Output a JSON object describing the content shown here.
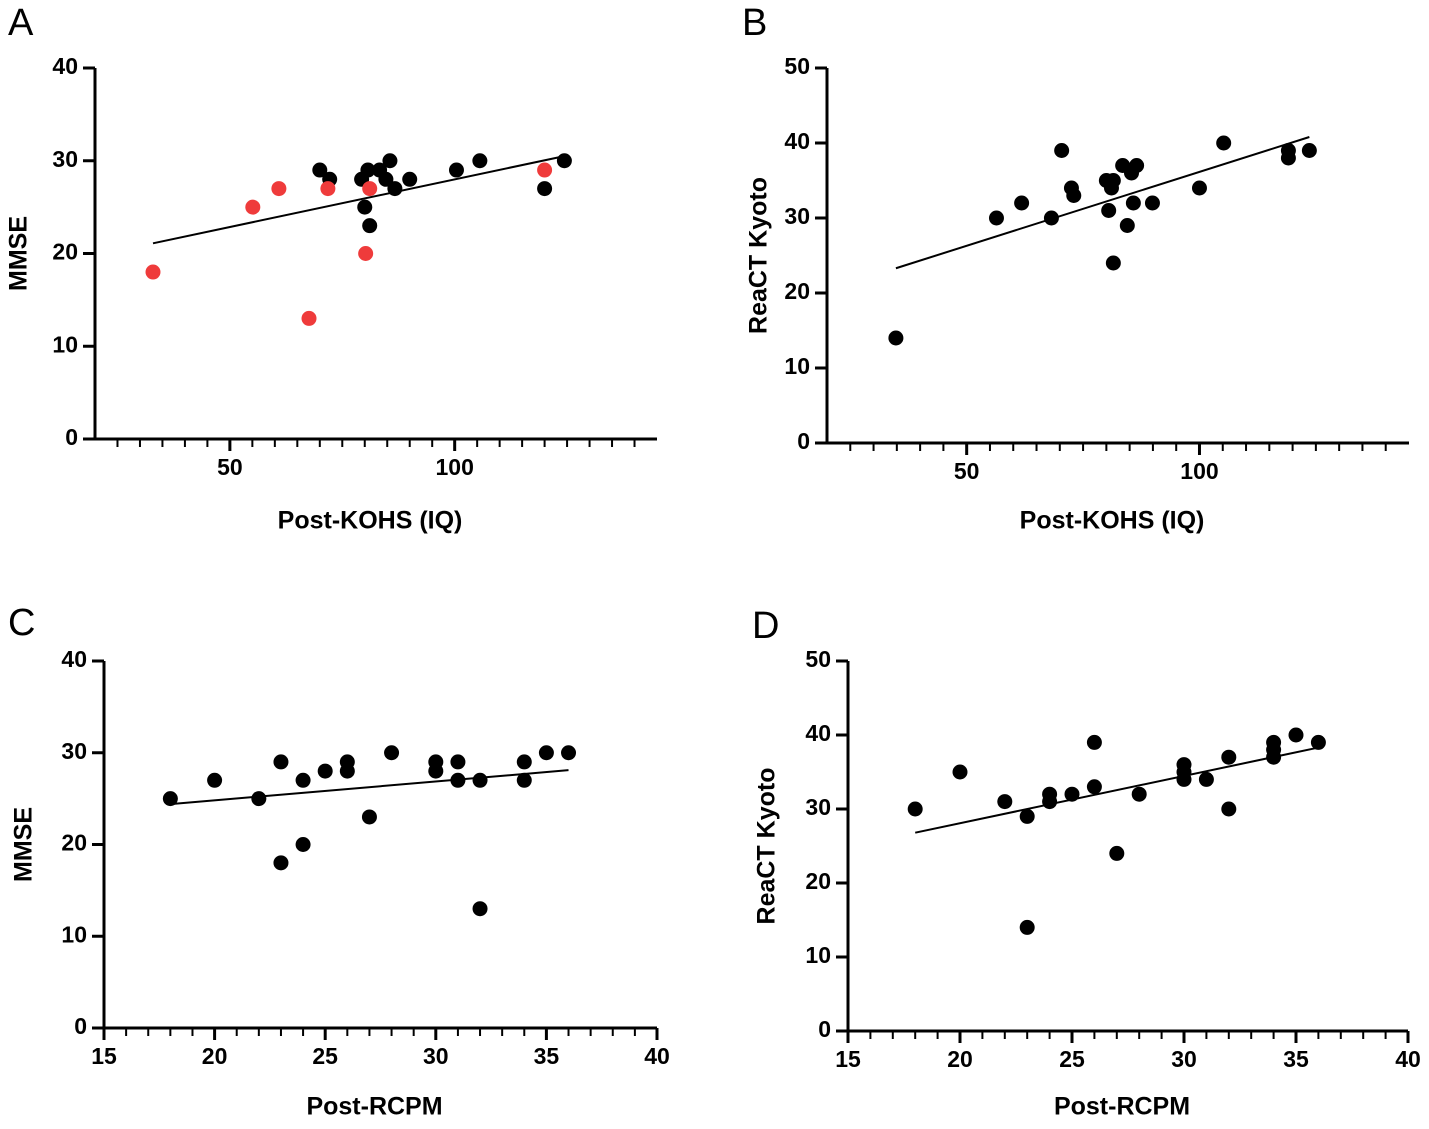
{
  "chart_data": [
    {
      "type": "scatter",
      "label": "A",
      "x_label": "Post-KOHS (IQ)",
      "y_label": "MMSE",
      "xlim": [
        20,
        145
      ],
      "xticks": [
        50,
        100
      ],
      "x_minor_ticks": [
        25,
        30,
        35,
        40,
        45,
        55,
        60,
        65,
        70,
        75,
        80,
        85,
        90,
        95,
        105,
        110,
        115,
        120,
        125,
        130,
        135,
        140
      ],
      "ylim": [
        0,
        40
      ],
      "yticks": [
        0,
        10,
        20,
        30,
        40
      ],
      "series": [
        {
          "color": "#000000",
          "x": [
            70,
            72.2,
            79.3,
            80.7,
            83.3,
            85.6,
            84.7,
            86.7,
            80,
            81.1,
            90,
            100.4,
            105.6,
            120,
            124.4
          ],
          "y": [
            29,
            28,
            28,
            29,
            29,
            30,
            28,
            27,
            25,
            23,
            28,
            29,
            30,
            27,
            30
          ]
        },
        {
          "color": "#ef3b3b",
          "x": [
            32.9,
            55.1,
            60.9,
            71.8,
            67.6,
            80.2,
            81.1,
            120
          ],
          "y": [
            18,
            25,
            27,
            27,
            13,
            20,
            27,
            29
          ]
        }
      ],
      "fit": {
        "color": "#000000",
        "x": [
          32.9,
          124.4
        ],
        "y": [
          21.1,
          30.5
        ]
      }
    },
    {
      "type": "scatter",
      "label": "B",
      "x_label": "Post-KOHS (IQ)",
      "y_label": "ReaCT Kyoto",
      "xlim": [
        20,
        145
      ],
      "xticks": [
        50,
        100
      ],
      "x_minor_ticks": [
        25,
        30,
        35,
        40,
        45,
        55,
        60,
        65,
        70,
        75,
        80,
        85,
        90,
        95,
        105,
        110,
        115,
        120,
        125,
        130,
        135,
        140
      ],
      "ylim": [
        0,
        50
      ],
      "yticks": [
        0,
        10,
        20,
        30,
        40,
        50
      ],
      "series": [
        {
          "color": "#000000",
          "x": [
            34.8,
            56.4,
            61.8,
            68.2,
            70.4,
            72.5,
            73,
            80,
            80.5,
            81.1,
            81.5,
            81.5,
            83.5,
            84.5,
            85.4,
            86.5,
            85.8,
            89.9,
            100,
            105.2,
            119.1,
            119.1,
            123.6
          ],
          "y": [
            14,
            30,
            32,
            30,
            39,
            34,
            33,
            35,
            31,
            34,
            35,
            24,
            37,
            29,
            36,
            37,
            32,
            32,
            34,
            40,
            39,
            38,
            39
          ]
        }
      ],
      "fit": {
        "color": "#000000",
        "x": [
          34.8,
          123.6
        ],
        "y": [
          23.3,
          40.8
        ]
      }
    },
    {
      "type": "scatter",
      "label": "C",
      "x_label": "Post-RCPM",
      "y_label": "MMSE",
      "xlim": [
        15,
        40
      ],
      "xticks": [
        15,
        20,
        25,
        30,
        35,
        40
      ],
      "x_minor_ticks": [
        16,
        17,
        18,
        19,
        21,
        22,
        23,
        24,
        26,
        27,
        28,
        29,
        31,
        32,
        33,
        34,
        36,
        37,
        38,
        39
      ],
      "ylim": [
        0,
        40
      ],
      "yticks": [
        0,
        10,
        20,
        30,
        40
      ],
      "series": [
        {
          "color": "#000000",
          "x": [
            18,
            20,
            22,
            23,
            23,
            24,
            24,
            25,
            26,
            26,
            27,
            28,
            30,
            30,
            31,
            31,
            32,
            32,
            34,
            34,
            35,
            36
          ],
          "y": [
            25,
            27,
            25,
            29,
            18,
            27,
            20,
            28,
            29,
            28,
            23,
            30,
            29,
            28,
            29,
            27,
            27,
            13,
            29,
            27,
            30,
            30
          ]
        }
      ],
      "fit": {
        "color": "#000000",
        "x": [
          18,
          36
        ],
        "y": [
          24.4,
          28.1
        ]
      }
    },
    {
      "type": "scatter",
      "label": "D",
      "x_label": "Post-RCPM",
      "y_label": "ReaCT Kyoto",
      "xlim": [
        15,
        40
      ],
      "xticks": [
        15,
        20,
        25,
        30,
        35,
        40
      ],
      "x_minor_ticks": [
        16,
        17,
        18,
        19,
        21,
        22,
        23,
        24,
        26,
        27,
        28,
        29,
        31,
        32,
        33,
        34,
        36,
        37,
        38,
        39
      ],
      "ylim": [
        0,
        50
      ],
      "yticks": [
        0,
        10,
        20,
        30,
        40,
        50
      ],
      "series": [
        {
          "color": "#000000",
          "x": [
            18,
            20,
            22,
            23,
            23,
            24,
            24,
            25,
            26,
            26,
            27,
            28,
            30,
            30,
            30,
            31,
            32,
            32,
            34,
            34,
            34,
            35,
            36
          ],
          "y": [
            30,
            35,
            31,
            29,
            14,
            32,
            31,
            32,
            39,
            33,
            24,
            32,
            36,
            35,
            34,
            34,
            37,
            30,
            39,
            38,
            37,
            40,
            39
          ]
        }
      ],
      "fit": {
        "color": "#000000",
        "x": [
          18,
          36
        ],
        "y": [
          26.8,
          38.3
        ]
      }
    }
  ]
}
